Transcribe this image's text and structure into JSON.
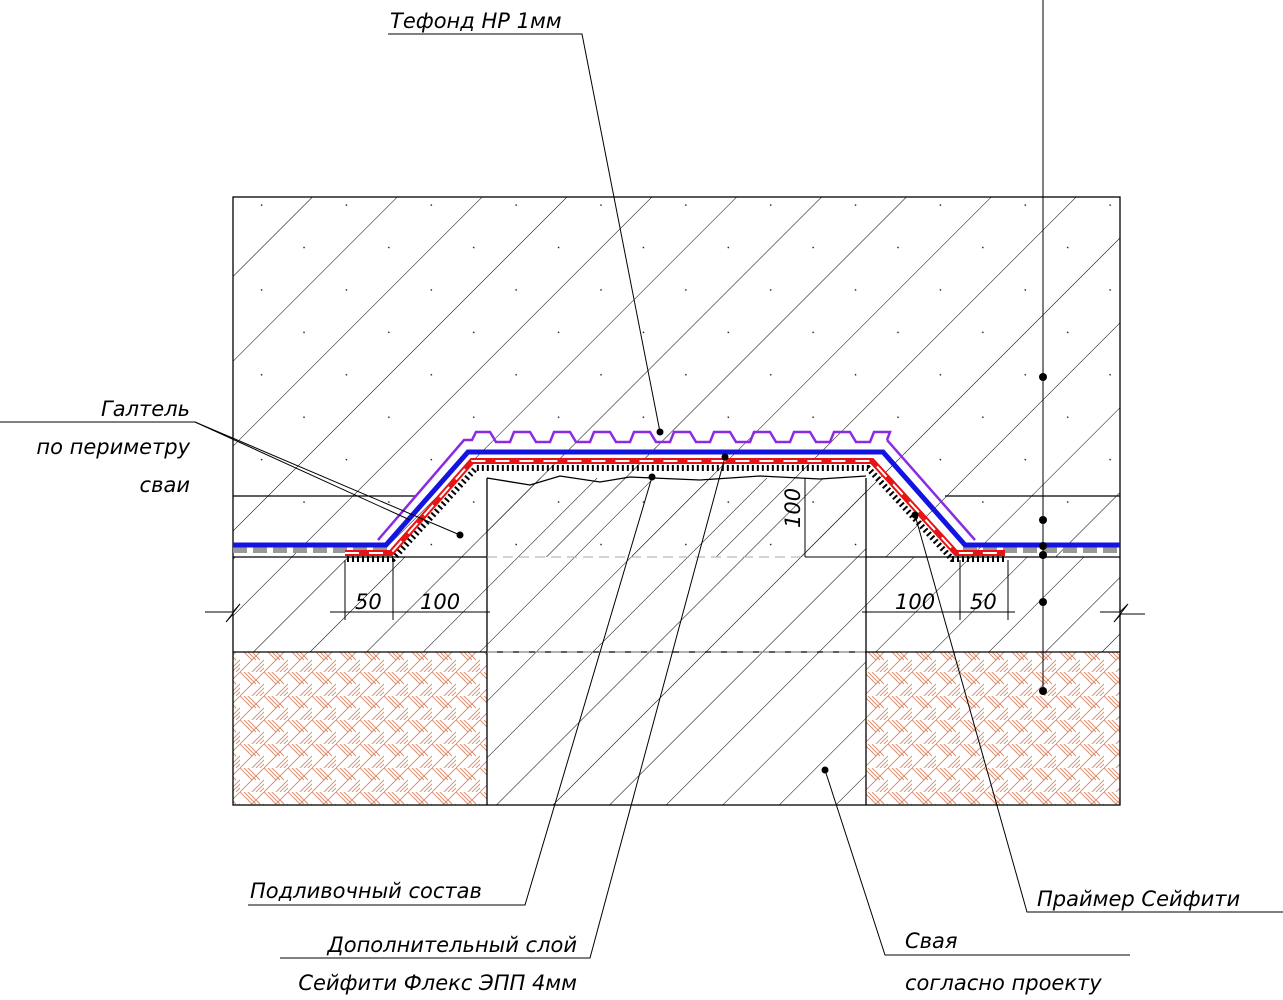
{
  "callouts": {
    "tefond": "Тефонд НР 1мм",
    "galtel": [
      "Галтель",
      "по периметру",
      "сваи"
    ],
    "podlivka": "Подливочный состав",
    "extra_layer": [
      "Дополнительный слой",
      "Сейфити Флекс ЭПП 4мм"
    ],
    "primer": "Праймер Сейфити",
    "pile": [
      "Свая",
      "согласно проекту"
    ]
  },
  "dimensions": {
    "left": [
      "50",
      "100"
    ],
    "right": [
      "100",
      "50"
    ],
    "height": "100"
  }
}
